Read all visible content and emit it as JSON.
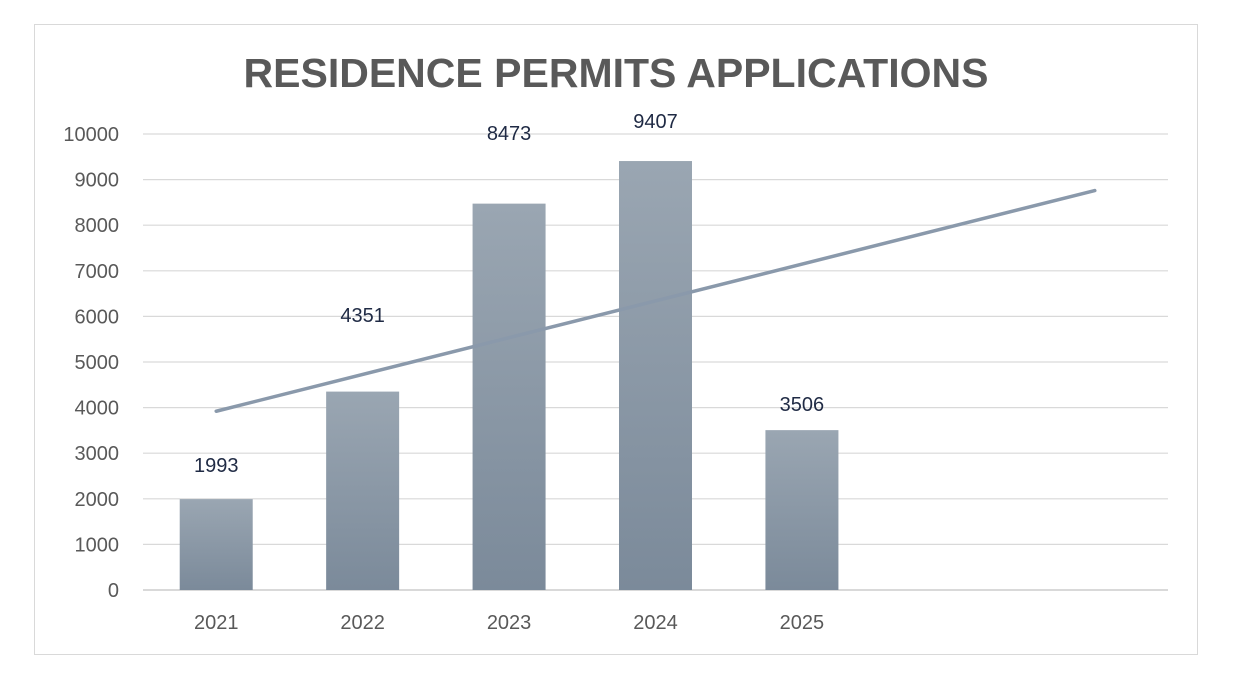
{
  "chart_data": {
    "type": "bar",
    "title": "RESIDENCE PERMITS APPLICATIONS",
    "xlabel": "",
    "ylabel": "",
    "categories": [
      "2021",
      "2022",
      "2023",
      "2024",
      "2025"
    ],
    "values": [
      1993,
      4351,
      8473,
      9407,
      3506
    ],
    "data_labels": [
      "1993",
      "4351",
      "8473",
      "9407",
      "3506"
    ],
    "ylim": [
      0,
      10000
    ],
    "y_ticks": [
      0,
      1000,
      2000,
      3000,
      4000,
      5000,
      6000,
      7000,
      8000,
      9000,
      10000
    ],
    "y_tick_labels": [
      "0",
      "1000",
      "2000",
      "3000",
      "4000",
      "5000",
      "6000",
      "7000",
      "8000",
      "9000",
      "10000"
    ],
    "x_slots": 7,
    "trendline": {
      "type": "linear",
      "start_category_index": 0,
      "end_category_index": 6,
      "start_value": 3920,
      "end_value": 8760
    },
    "grid": true,
    "legend": "none",
    "colors": {
      "bar_top": "#9aa6b2",
      "bar_bottom": "#7b8a9a",
      "trendline": "#8a99ab",
      "gridline": "#d9d9d9",
      "axis": "#d9d9d9"
    }
  }
}
